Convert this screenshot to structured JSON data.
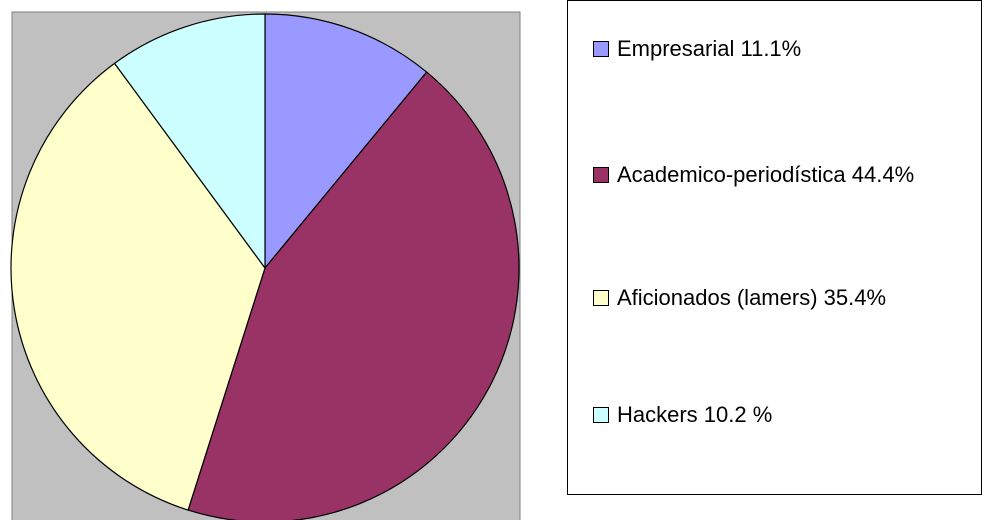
{
  "chart_data": {
    "type": "pie",
    "categories": [
      "Empresarial 11.1%",
      "Academico-periodística 44.4%",
      "Aficionados (lamers) 35.4%",
      "Hackers 10.2 %"
    ],
    "values": [
      11.1,
      44.4,
      35.4,
      10.2
    ],
    "colors": [
      "#9999ff",
      "#993366",
      "#ffffcc",
      "#ccffff"
    ],
    "legend": "right"
  }
}
